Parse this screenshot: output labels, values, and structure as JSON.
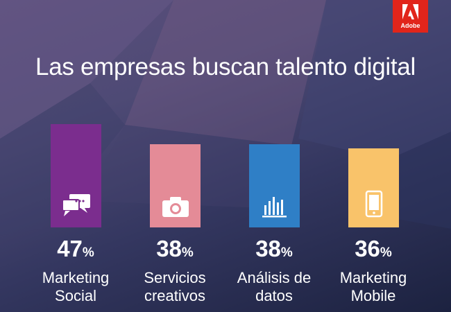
{
  "brand": {
    "logo_text": "Adobe",
    "color": "#e1251b"
  },
  "title": "Las empresas buscan talento digital",
  "chart_data": {
    "type": "bar",
    "title": "Las empresas buscan talento digital",
    "categories": [
      "Marketing Social",
      "Servicios creativos",
      "Análisis de datos",
      "Marketing Mobile"
    ],
    "values": [
      47,
      38,
      38,
      36
    ],
    "unit": "%",
    "colors": [
      "#7b2d8e",
      "#e48b97",
      "#2f7fc6",
      "#f9c36a"
    ],
    "icons": [
      "chat-icon",
      "camera-icon",
      "bar-chart-icon",
      "smartphone-icon"
    ],
    "ylim": [
      0,
      47
    ]
  },
  "bars": [
    {
      "value": "47",
      "unit": "%",
      "label_line1": "Marketing",
      "label_line2": "Social"
    },
    {
      "value": "38",
      "unit": "%",
      "label_line1": "Servicios",
      "label_line2": "creativos"
    },
    {
      "value": "38",
      "unit": "%",
      "label_line1": "Análisis de",
      "label_line2": "datos"
    },
    {
      "value": "36",
      "unit": "%",
      "label_line1": "Marketing",
      "label_line2": "Mobile"
    }
  ]
}
